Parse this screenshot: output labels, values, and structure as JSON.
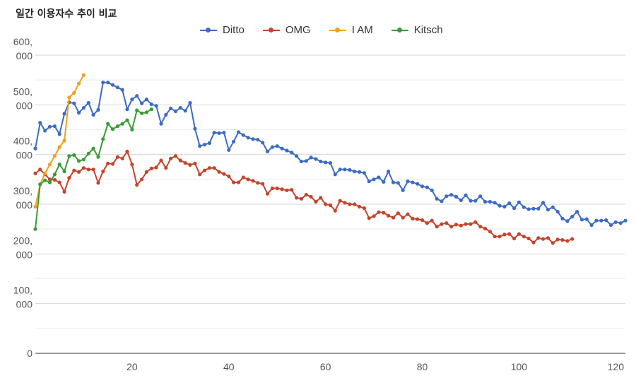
{
  "title": "일간 이용자수 추이 비교",
  "chart_data": {
    "type": "line",
    "title": "일간 이용자수 추이 비교",
    "xlabel": "",
    "ylabel": "",
    "xlim": [
      0,
      122
    ],
    "ylim": [
      0,
      600000
    ],
    "grid": true,
    "legend_position": "top",
    "x_ticks": [
      20,
      40,
      60,
      80,
      100,
      120
    ],
    "y_ticks": [
      {
        "value": 0,
        "lines": [
          "0"
        ]
      },
      {
        "value": 100000,
        "lines": [
          "100,",
          "000"
        ]
      },
      {
        "value": 200000,
        "lines": [
          "200,",
          "000"
        ]
      },
      {
        "value": 300000,
        "lines": [
          "300,",
          "000"
        ]
      },
      {
        "value": 400000,
        "lines": [
          "400,",
          "000"
        ]
      },
      {
        "value": 500000,
        "lines": [
          "500,",
          "000"
        ]
      },
      {
        "value": 600000,
        "lines": [
          "600,",
          "000"
        ]
      }
    ],
    "series": [
      {
        "name": "Ditto",
        "color": "#3c6cc4",
        "x_start": 0,
        "values": [
          412000,
          464000,
          448000,
          456000,
          457000,
          441000,
          482000,
          505000,
          503000,
          484000,
          494000,
          504000,
          480000,
          490000,
          545000,
          545000,
          540000,
          535000,
          530000,
          491000,
          511000,
          518000,
          503000,
          511000,
          501000,
          498000,
          462000,
          480000,
          493000,
          487000,
          494000,
          488000,
          504000,
          452000,
          417000,
          420000,
          423000,
          444000,
          443000,
          444000,
          409000,
          426000,
          445000,
          439000,
          434000,
          431000,
          430000,
          424000,
          406000,
          415000,
          417000,
          412000,
          408000,
          404000,
          397000,
          386000,
          387000,
          394000,
          391000,
          386000,
          384000,
          383000,
          360000,
          370000,
          370000,
          369000,
          366000,
          365000,
          363000,
          346000,
          350000,
          354000,
          345000,
          366000,
          344000,
          343000,
          328000,
          346000,
          344000,
          341000,
          336000,
          334000,
          328000,
          311000,
          306000,
          316000,
          319000,
          315000,
          308000,
          318000,
          307000,
          307000,
          316000,
          305000,
          305000,
          303000,
          297000,
          295000,
          302000,
          292000,
          304000,
          294000,
          290000,
          291000,
          291000,
          303000,
          289000,
          294000,
          285000,
          271000,
          266000,
          275000,
          285000,
          269000,
          270000,
          258000,
          267000,
          267000,
          268000,
          258000,
          264000,
          262000,
          267000
        ]
      },
      {
        "name": "OMG",
        "color": "#c5442b",
        "x_start": 0,
        "values": [
          362000,
          370000,
          360000,
          350000,
          349000,
          344000,
          325000,
          353000,
          368000,
          365000,
          373000,
          370000,
          370000,
          343000,
          366000,
          382000,
          381000,
          395000,
          392000,
          406000,
          380000,
          339000,
          350000,
          365000,
          372000,
          374000,
          388000,
          373000,
          392000,
          397000,
          388000,
          383000,
          379000,
          382000,
          360000,
          368000,
          373000,
          373000,
          365000,
          361000,
          356000,
          344000,
          344000,
          354000,
          350000,
          347000,
          343000,
          341000,
          321000,
          332000,
          332000,
          330000,
          328000,
          329000,
          313000,
          311000,
          319000,
          315000,
          305000,
          313000,
          300000,
          298000,
          287000,
          307000,
          303000,
          300000,
          300000,
          295000,
          292000,
          272000,
          276000,
          284000,
          283000,
          277000,
          273000,
          282000,
          273000,
          280000,
          271000,
          270000,
          268000,
          262000,
          267000,
          255000,
          260000,
          262000,
          255000,
          259000,
          257000,
          260000,
          260000,
          264000,
          255000,
          251000,
          245000,
          235000,
          235000,
          239000,
          240000,
          231000,
          240000,
          235000,
          231000,
          223000,
          232000,
          230000,
          232000,
          222000,
          229000,
          228000,
          226000,
          230000
        ]
      },
      {
        "name": "I AM",
        "color": "#f0a020",
        "x_start": 0,
        "values": [
          295000,
          340000,
          362000,
          380000,
          397000,
          415000,
          428000,
          515000,
          524000,
          543000,
          560000
        ]
      },
      {
        "name": "Kitsch",
        "color": "#3a9b37",
        "x_start": 0,
        "values": [
          250000,
          340000,
          348000,
          344000,
          360000,
          380000,
          366000,
          397000,
          399000,
          387000,
          390000,
          402000,
          412000,
          395000,
          431000,
          462000,
          451000,
          457000,
          462000,
          469000,
          450000,
          489000,
          483000,
          485000,
          491000
        ]
      }
    ]
  }
}
